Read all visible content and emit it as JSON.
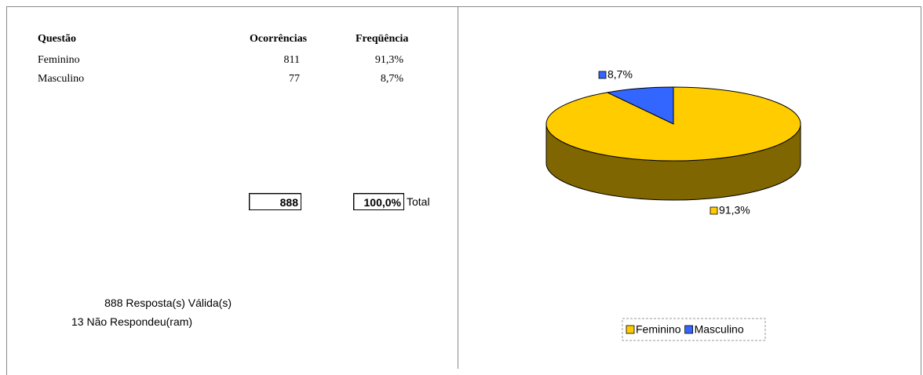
{
  "table": {
    "header": [
      "Questão",
      "Ocorrências",
      "Freqüência"
    ],
    "rows": [
      [
        "Feminino",
        "811",
        "91,3%"
      ],
      [
        "Masculino",
        "77",
        "8,7%"
      ]
    ],
    "total": {
      "count": "888",
      "percent": "100,0%",
      "label": "Total"
    }
  },
  "summary": [
    "888 Resposta(s) Válida(s)",
    "13 Não Respondeu(ram)"
  ],
  "chart_data": {
    "type": "pie",
    "categories": [
      "Feminino",
      "Masculino"
    ],
    "values": [
      91.3,
      8.7
    ],
    "value_labels": [
      "91,3%",
      "8,7%"
    ],
    "colors": [
      "#ffcc00",
      "#3366ff"
    ],
    "legend": "bottom"
  }
}
